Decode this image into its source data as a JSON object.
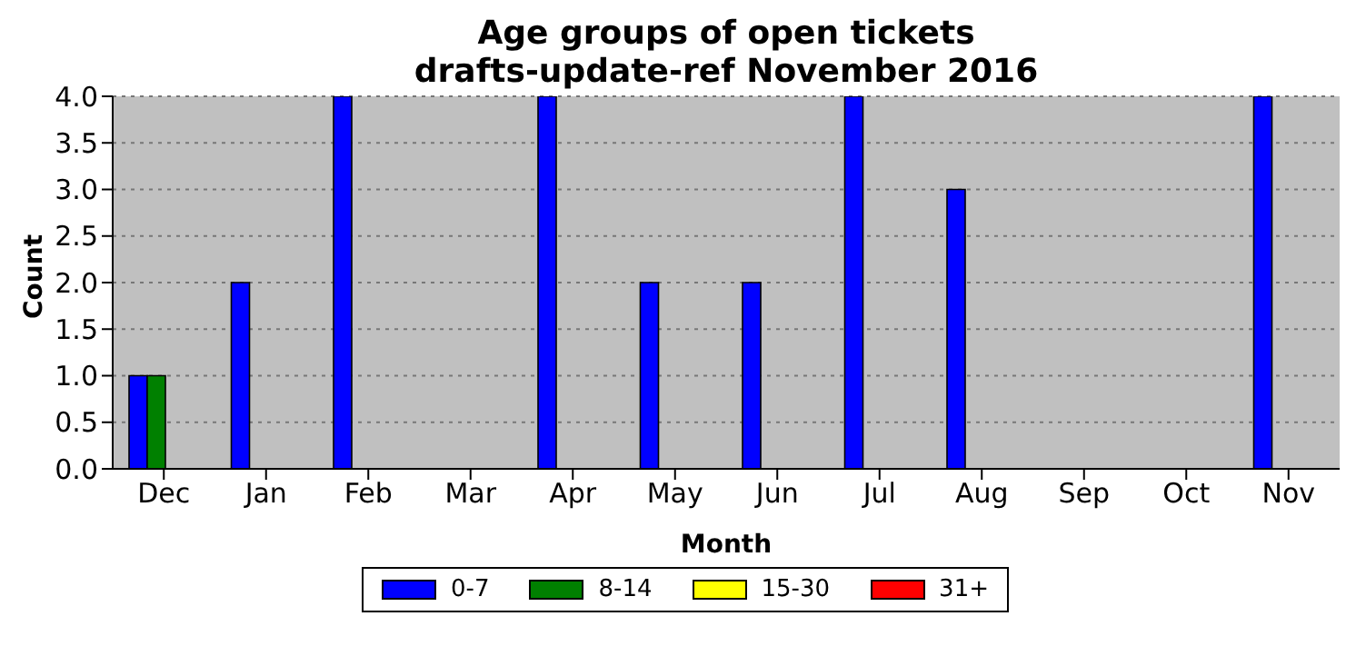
{
  "chart_data": {
    "type": "bar",
    "title": "Age groups of open tickets\ndrafts-update-ref November 2016",
    "xlabel": "Month",
    "ylabel": "Count",
    "categories": [
      "Dec",
      "Jan",
      "Feb",
      "Mar",
      "Apr",
      "May",
      "Jun",
      "Jul",
      "Aug",
      "Sep",
      "Oct",
      "Nov"
    ],
    "series": [
      {
        "name": "0-7",
        "color": "#0000ff",
        "values": [
          1,
          2,
          4,
          0,
          4,
          2,
          2,
          4,
          3,
          0,
          0,
          4
        ]
      },
      {
        "name": "8-14",
        "color": "#008000",
        "values": [
          1,
          0,
          0,
          0,
          0,
          0,
          0,
          0,
          0,
          0,
          0,
          0
        ]
      },
      {
        "name": "15-30",
        "color": "#ffff00",
        "values": [
          0,
          0,
          0,
          0,
          0,
          0,
          0,
          0,
          0,
          0,
          0,
          0
        ]
      },
      {
        "name": "31+",
        "color": "#ff0000",
        "values": [
          0,
          0,
          0,
          0,
          0,
          0,
          0,
          0,
          0,
          0,
          0,
          0
        ]
      }
    ],
    "ylim": [
      0,
      4
    ],
    "yticks": [
      {
        "value": 0,
        "label": "0.0"
      },
      {
        "value": 0.5,
        "label": "0.5"
      },
      {
        "value": 1,
        "label": "1.0"
      },
      {
        "value": 1.5,
        "label": "1.5"
      },
      {
        "value": 2,
        "label": "2.0"
      },
      {
        "value": 2.5,
        "label": "2.5"
      },
      {
        "value": 3,
        "label": "3.0"
      },
      {
        "value": 3.5,
        "label": "3.5"
      },
      {
        "value": 4,
        "label": "4.0"
      }
    ],
    "grid": "y",
    "legend": "bottom"
  }
}
